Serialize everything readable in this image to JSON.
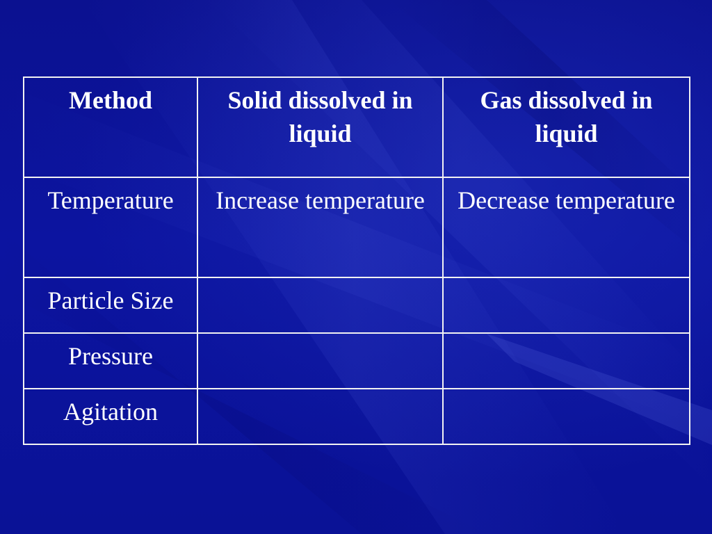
{
  "table": {
    "headers": [
      "Method",
      "Solid dissolved in liquid",
      "Gas dissolved in liquid"
    ],
    "rows": [
      [
        "Temperature",
        "Increase temperature",
        "Decrease temperature"
      ],
      [
        "Particle Size",
        "",
        ""
      ],
      [
        "Pressure",
        "",
        ""
      ],
      [
        "Agitation",
        "",
        ""
      ]
    ]
  },
  "colors": {
    "background": "#0a0f96",
    "text": "#ffffff",
    "grid_lines": "#f2f2f2"
  }
}
